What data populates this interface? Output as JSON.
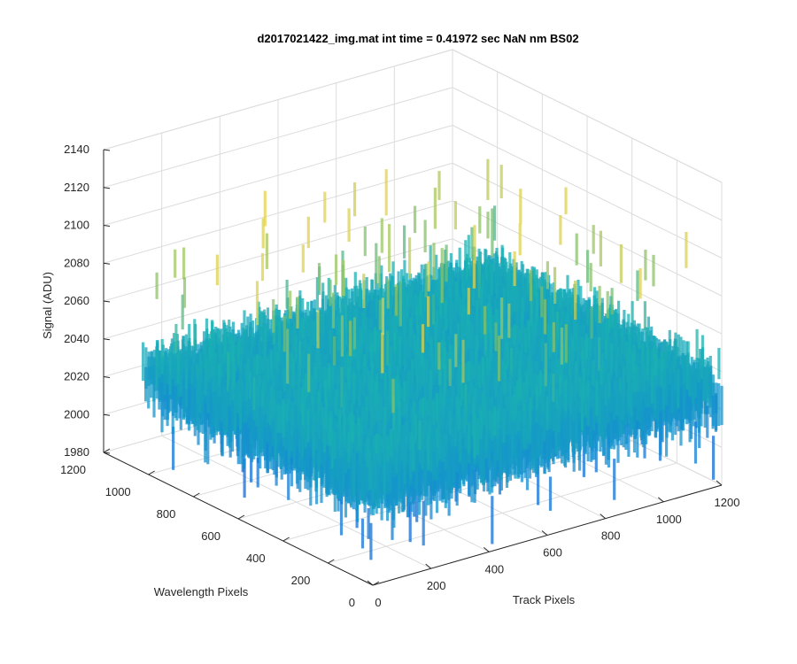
{
  "chart_data": {
    "type": "surface",
    "title": "d2017021422_img.mat int time = 0.41972 sec  NaN nm BS02",
    "xlabel": "Track Pixels",
    "ylabel": "Wavelength Pixels",
    "zlabel": "Signal (ADU)",
    "xlim": [
      0,
      1200
    ],
    "ylim": [
      0,
      1200
    ],
    "zlim": [
      1980,
      2140
    ],
    "xticks": [
      "0",
      "200",
      "400",
      "600",
      "800",
      "1000",
      "1200"
    ],
    "yticks": [
      "0",
      "200",
      "400",
      "600",
      "800",
      "1000",
      "1200"
    ],
    "zticks": [
      "1980",
      "2000",
      "2020",
      "2040",
      "2060",
      "2080",
      "2100",
      "2120",
      "2140"
    ],
    "grid": true,
    "colormap": "parula",
    "data_extent": {
      "x": [
        0,
        1200
      ],
      "y": [
        0,
        1024
      ]
    },
    "signal_mean": 2040,
    "signal_range_approx": [
      1990,
      2125
    ]
  },
  "colors": {
    "axis": "#262626",
    "grid": "#dcdcdc",
    "surface_low": "#0f72d6",
    "surface_mid": "#1ab2b0",
    "surface_high": "#e8d24a"
  }
}
